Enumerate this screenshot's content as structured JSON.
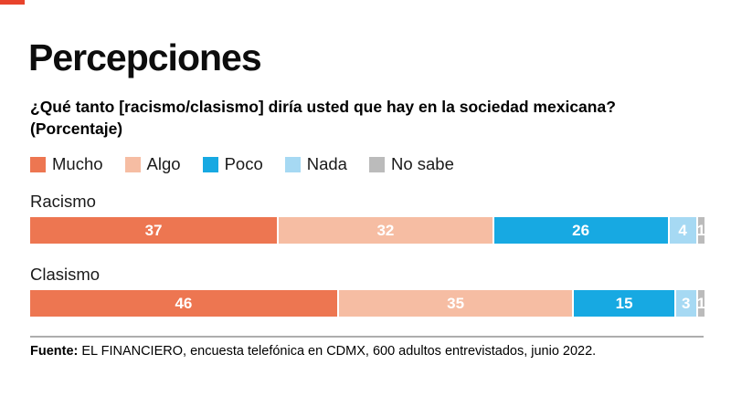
{
  "brand": {
    "accent_color": "#e8432c"
  },
  "header": {
    "title": "Percepciones",
    "subtitle_line1": "¿Qué tanto [racismo/clasismo] diría usted que hay en la sociedad mexicana?",
    "subtitle_line2": "(Porcentaje)"
  },
  "legend": [
    {
      "label": "Mucho",
      "color": "#ed7651"
    },
    {
      "label": "Algo",
      "color": "#f6bda3"
    },
    {
      "label": "Poco",
      "color": "#17a9e2"
    },
    {
      "label": "Nada",
      "color": "#a6d9f3"
    },
    {
      "label": "No sabe",
      "color": "#bbbbbb"
    }
  ],
  "chart_data": {
    "type": "bar",
    "orientation": "horizontal_stacked",
    "units": "percent",
    "xlim": [
      0,
      100
    ],
    "value_labels_shown": true,
    "categories": [
      "Racismo",
      "Clasismo"
    ],
    "series": [
      {
        "name": "Mucho",
        "color": "#ed7651",
        "values": [
          37,
          46
        ]
      },
      {
        "name": "Algo",
        "color": "#f6bda3",
        "values": [
          32,
          35
        ]
      },
      {
        "name": "Poco",
        "color": "#17a9e2",
        "values": [
          26,
          15
        ]
      },
      {
        "name": "Nada",
        "color": "#a6d9f3",
        "values": [
          4,
          3
        ]
      },
      {
        "name": "No sabe",
        "color": "#bbbbbb",
        "values": [
          1,
          1
        ]
      }
    ]
  },
  "footer": {
    "source_label": "Fuente:",
    "source_text": "EL FINANCIERO, encuesta telefónica en CDMX, 600 adultos entrevistados, junio 2022."
  }
}
